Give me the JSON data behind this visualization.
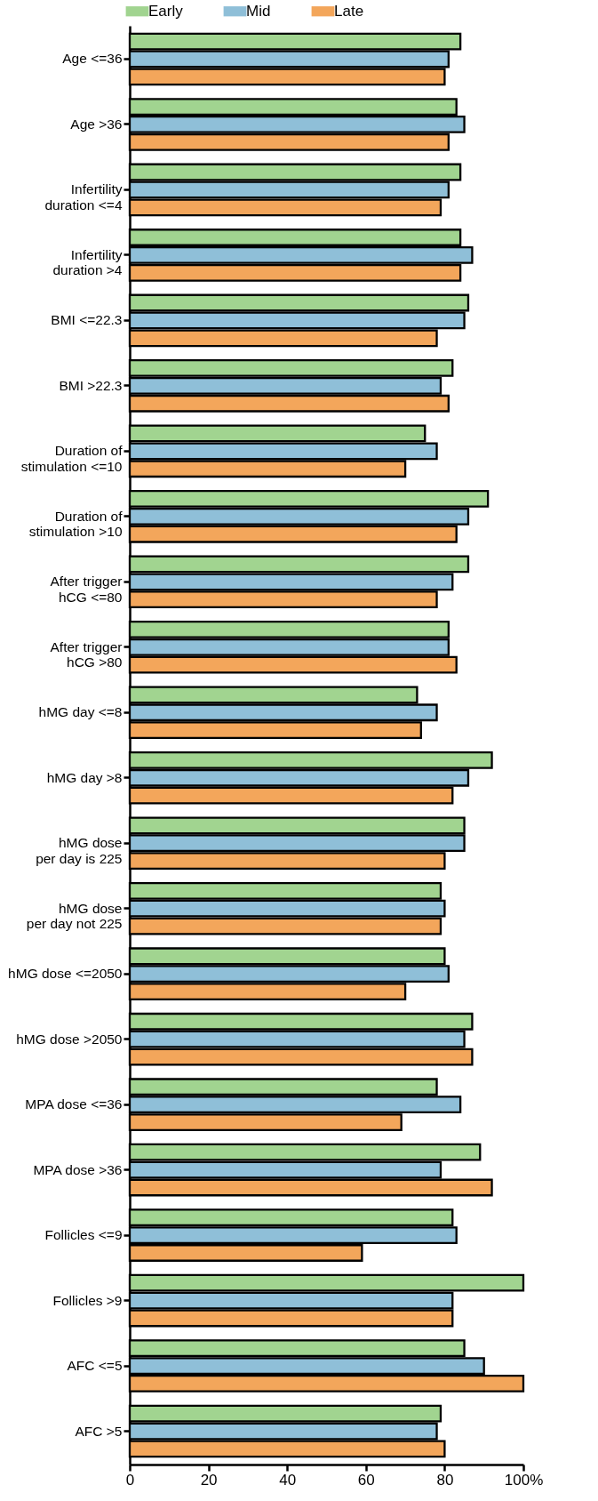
{
  "chart_data": {
    "type": "bar",
    "orientation": "horizontal",
    "categories": [
      "Age <=36",
      "Age >36",
      "Infertility\nduration <=4",
      "Infertility\nduration >4",
      "BMI <=22.3",
      "BMI >22.3",
      "Duration of\nstimulation <=10",
      "Duration of\nstimulation >10",
      "After trigger\nhCG <=80",
      "After trigger\nhCG >80",
      "hMG day <=8",
      "hMG day >8",
      "hMG dose\nper day is 225",
      "hMG dose\nper day not 225",
      "hMG dose <=2050",
      "hMG dose >2050",
      "MPA dose <=36",
      "MPA dose >36",
      "Follicles <=9",
      "Follicles >9",
      "AFC <=5",
      "AFC >5"
    ],
    "series": [
      {
        "name": "Early",
        "color": "#a1d490",
        "values": [
          84,
          83,
          84,
          84,
          86,
          82,
          75,
          91,
          86,
          81,
          73,
          92,
          85,
          79,
          80,
          87,
          78,
          89,
          82,
          100,
          85,
          79
        ]
      },
      {
        "name": "Mid",
        "color": "#8fbfd8",
        "values": [
          81,
          85,
          81,
          87,
          85,
          79,
          78,
          86,
          82,
          81,
          78,
          86,
          85,
          80,
          81,
          85,
          84,
          79,
          83,
          82,
          90,
          78
        ]
      },
      {
        "name": "Late",
        "color": "#f3a65b",
        "values": [
          80,
          81,
          79,
          84,
          78,
          81,
          70,
          83,
          78,
          83,
          74,
          82,
          80,
          79,
          70,
          87,
          69,
          92,
          59,
          82,
          100,
          80
        ]
      }
    ],
    "xlim": [
      0,
      100
    ],
    "xticks": [
      0,
      20,
      40,
      60,
      80,
      {
        "value": 100,
        "label": "100%"
      }
    ],
    "legend": "top",
    "grid": false
  }
}
